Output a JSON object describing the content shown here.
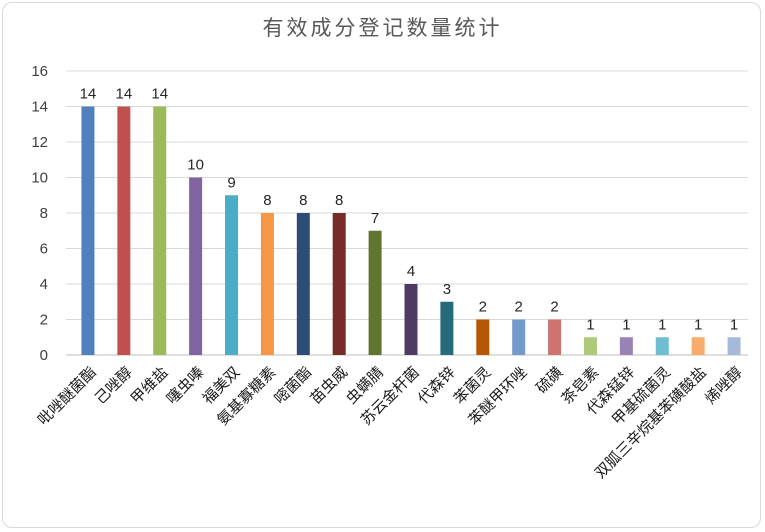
{
  "chart_data": {
    "type": "bar",
    "title": "有效成分登记数量统计",
    "xlabel": "",
    "ylabel": "",
    "ylim": [
      0,
      16
    ],
    "yticks": [
      0,
      2,
      4,
      6,
      8,
      10,
      12,
      14,
      16
    ],
    "grid": true,
    "legend": "none",
    "categories": [
      "吡唑醚菌酯",
      "己唑醇",
      "甲维盐",
      "噻虫嗪",
      "福美双",
      "氨基寡糖素",
      "嘧菌酯",
      "苗虫威",
      "虫螨腈",
      "苏云金杆菌",
      "代森锌",
      "苯菌灵",
      "苯醚甲环唑",
      "硫磺",
      "茶皂素",
      "代森锰锌",
      "甲基硫菌灵",
      "双胍三辛烷基苯磺酸盐",
      "烯唑醇"
    ],
    "values": [
      14,
      14,
      14,
      10,
      9,
      8,
      8,
      8,
      7,
      4,
      3,
      2,
      2,
      2,
      1,
      1,
      1,
      1,
      1
    ],
    "colors": [
      "#4f81bd",
      "#c0504d",
      "#9bbb59",
      "#8064a2",
      "#4bacc6",
      "#f79646",
      "#2c4d75",
      "#772c2a",
      "#5f7530",
      "#4d3b62",
      "#276a7c",
      "#b65708",
      "#729aca",
      "#cd7371",
      "#afc97a",
      "#9983b5",
      "#6fbdd1",
      "#f9ab6b",
      "#a5b9da"
    ]
  }
}
